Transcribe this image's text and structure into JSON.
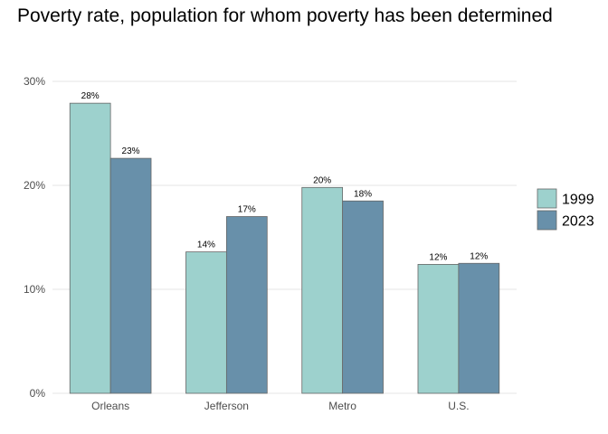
{
  "chart_data": {
    "type": "bar",
    "title": "Poverty rate, population for whom poverty has been determined",
    "xlabel": "",
    "ylabel": "",
    "categories": [
      "Orleans",
      "Jefferson",
      "Metro",
      "U.S."
    ],
    "series": [
      {
        "name": "1999",
        "color": "#9dd1cd",
        "values": [
          0.279,
          0.136,
          0.198,
          0.124
        ],
        "labels": [
          "28%",
          "14%",
          "20%",
          "12%"
        ]
      },
      {
        "name": "2023",
        "color": "#6890aa",
        "values": [
          0.226,
          0.17,
          0.185,
          0.125
        ],
        "labels": [
          "23%",
          "17%",
          "18%",
          "12%"
        ]
      }
    ],
    "ylim": [
      0,
      0.3
    ],
    "yticks": [
      0,
      0.1,
      0.2,
      0.3
    ],
    "ytick_labels": [
      "0%",
      "10%",
      "20%",
      "30%"
    ],
    "grid": true,
    "legend_position": "right"
  }
}
